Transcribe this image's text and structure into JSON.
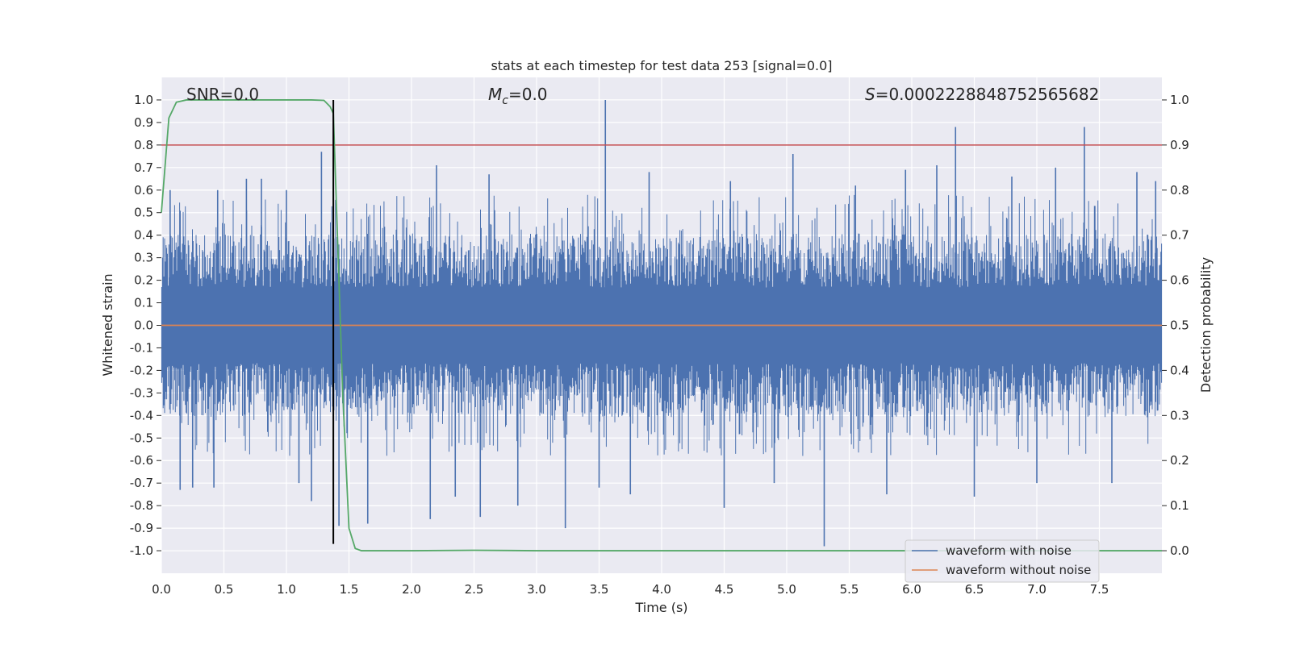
{
  "chart_data": {
    "type": "line",
    "title": "stats at each timestep for test data 253 [signal=0.0]",
    "xlabel": "Time (s)",
    "ylabel": "Whitened strain",
    "y2label": "Detection probability",
    "xlim": [
      0.0,
      8.0
    ],
    "ylim": [
      -1.1,
      1.1
    ],
    "y2lim": [
      -0.05,
      1.05
    ],
    "x_ticks": [
      0.0,
      0.5,
      1.0,
      1.5,
      2.0,
      2.5,
      3.0,
      3.5,
      4.0,
      4.5,
      5.0,
      5.5,
      6.0,
      6.5,
      7.0,
      7.5
    ],
    "x_tick_labels": [
      "0.0",
      "0.5",
      "1.0",
      "1.5",
      "2.0",
      "2.5",
      "3.0",
      "3.5",
      "4.0",
      "4.5",
      "5.0",
      "5.5",
      "6.0",
      "6.5",
      "7.0",
      "7.5"
    ],
    "y_ticks": [
      1.0,
      0.9,
      0.8,
      0.7,
      0.6,
      0.5,
      0.4,
      0.3,
      0.2,
      0.1,
      0.0,
      -0.1,
      -0.2,
      -0.3,
      -0.4,
      -0.5,
      -0.6,
      -0.7,
      -0.8,
      -0.9,
      -1.0
    ],
    "y_tick_labels": [
      "1.0",
      "0.9",
      "0.8",
      "0.7",
      "0.6",
      "0.5",
      "0.4",
      "0.3",
      "0.2",
      "0.1",
      "0.0",
      "-0.1",
      "-0.2",
      "-0.3",
      "-0.4",
      "-0.5",
      "-0.6",
      "-0.7",
      "-0.8",
      "-0.9",
      "-1.0"
    ],
    "y2_ticks": [
      1.0,
      0.9,
      0.8,
      0.7,
      0.6,
      0.5,
      0.4,
      0.3,
      0.2,
      0.1,
      0.0
    ],
    "y2_tick_labels": [
      "1.0",
      "0.9",
      "0.8",
      "0.7",
      "0.6",
      "0.5",
      "0.4",
      "0.3",
      "0.2",
      "0.1",
      "0.0"
    ],
    "grid": true,
    "annotations": {
      "snr": "SNR=0.0",
      "mc_symbol": "M",
      "mc_sub": "c",
      "mc_value": "=0.0",
      "s_symbol": "S",
      "s_value": "=0.0002228848752565682"
    },
    "threshold": {
      "axis": "right",
      "value": 0.9,
      "color": "#c44e52"
    },
    "marker_line": {
      "x": 1.375,
      "ymin": -0.97,
      "ymax": 1.0,
      "color": "#000000"
    },
    "noise_waveform": {
      "name": "waveform with noise",
      "color": "#4c72b0",
      "amplitude_approx": 0.4,
      "spikes": [
        {
          "x": 0.07,
          "y": 0.6
        },
        {
          "x": 0.15,
          "y": -0.73
        },
        {
          "x": 0.25,
          "y": -0.72
        },
        {
          "x": 0.42,
          "y": -0.72
        },
        {
          "x": 0.45,
          "y": 0.6
        },
        {
          "x": 0.68,
          "y": 0.65
        },
        {
          "x": 0.8,
          "y": 0.65
        },
        {
          "x": 1.0,
          "y": 0.6
        },
        {
          "x": 1.1,
          "y": -0.7
        },
        {
          "x": 1.2,
          "y": -0.78
        },
        {
          "x": 1.28,
          "y": 0.77
        },
        {
          "x": 1.42,
          "y": -0.89
        },
        {
          "x": 1.65,
          "y": -0.88
        },
        {
          "x": 2.15,
          "y": -0.86
        },
        {
          "x": 2.2,
          "y": 0.71
        },
        {
          "x": 2.35,
          "y": -0.76
        },
        {
          "x": 2.55,
          "y": -0.85
        },
        {
          "x": 2.62,
          "y": 0.67
        },
        {
          "x": 2.85,
          "y": -0.8
        },
        {
          "x": 3.23,
          "y": -0.9
        },
        {
          "x": 3.5,
          "y": -0.72
        },
        {
          "x": 3.55,
          "y": 1.0
        },
        {
          "x": 3.75,
          "y": -0.75
        },
        {
          "x": 3.9,
          "y": 0.68
        },
        {
          "x": 4.5,
          "y": -0.81
        },
        {
          "x": 4.55,
          "y": 0.64
        },
        {
          "x": 4.9,
          "y": -0.7
        },
        {
          "x": 5.05,
          "y": 0.76
        },
        {
          "x": 5.3,
          "y": -0.98
        },
        {
          "x": 5.55,
          "y": 0.62
        },
        {
          "x": 5.8,
          "y": -0.75
        },
        {
          "x": 5.95,
          "y": 0.69
        },
        {
          "x": 6.2,
          "y": 0.71
        },
        {
          "x": 6.35,
          "y": 0.88
        },
        {
          "x": 6.5,
          "y": -0.76
        },
        {
          "x": 6.8,
          "y": 0.66
        },
        {
          "x": 7.0,
          "y": -0.7
        },
        {
          "x": 7.15,
          "y": 0.7
        },
        {
          "x": 7.38,
          "y": 0.88
        },
        {
          "x": 7.6,
          "y": -0.7
        },
        {
          "x": 7.8,
          "y": 0.68
        },
        {
          "x": 7.95,
          "y": 0.64
        }
      ]
    },
    "clean_waveform": {
      "name": "waveform without noise",
      "color": "#dd8452",
      "x": [
        0.0,
        8.0
      ],
      "y": [
        0.0,
        0.0
      ]
    },
    "probability": {
      "name": "Detection probability",
      "color": "#55a868",
      "axis": "right",
      "x": [
        0.0,
        0.06,
        0.12,
        0.2,
        0.5,
        1.0,
        1.2,
        1.3,
        1.35,
        1.375,
        1.45,
        1.5,
        1.55,
        1.6,
        2.0,
        2.5,
        3.0,
        5.0,
        8.0
      ],
      "y": [
        0.75,
        0.96,
        0.995,
        1.0,
        1.0,
        1.0,
        1.0,
        0.999,
        0.985,
        0.97,
        0.35,
        0.05,
        0.005,
        0.0,
        0.0,
        0.001,
        0.0,
        0.0,
        0.0
      ]
    },
    "legend": {
      "position": "lower-right",
      "entries": [
        {
          "label": "waveform with noise",
          "color": "#4c72b0"
        },
        {
          "label": "waveform without noise",
          "color": "#dd8452"
        }
      ]
    }
  }
}
